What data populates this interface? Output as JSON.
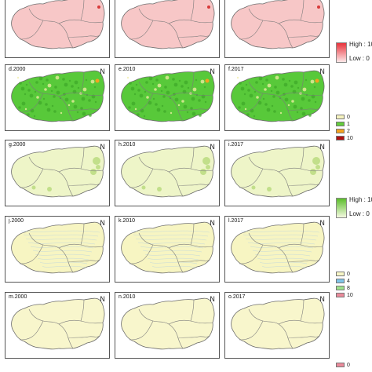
{
  "colors": {
    "row_a": "#f7c7c7",
    "row_b": "#58c93a",
    "row_c": "#eef5c8",
    "row_d": "#f7f5c2",
    "row_e": "#f8f6cc",
    "red_hot": "#d83a3a",
    "grad_red_high": "#e8333c",
    "grad_red_low": "#fde8e8",
    "grad_green_high": "#5bbd2a",
    "grad_green_low": "#f4f9e0",
    "cat1_0": "#f6f3bf",
    "cat1_1": "#63cc3c",
    "cat1_2": "#f4a21f",
    "cat1_10": "#b01010",
    "cat2_0": "#f8f6c6",
    "cat2_4": "#7fc4e8",
    "cat2_8": "#9de08c",
    "cat2_10": "#e98a9a"
  },
  "panels": [
    {
      "label": "",
      "row": 0,
      "col": 0
    },
    {
      "label": "",
      "row": 0,
      "col": 1
    },
    {
      "label": "",
      "row": 0,
      "col": 2
    },
    {
      "label": "d.2000",
      "row": 1,
      "col": 0
    },
    {
      "label": "e.2010",
      "row": 1,
      "col": 1
    },
    {
      "label": "f.2017",
      "row": 1,
      "col": 2
    },
    {
      "label": "g.2000",
      "row": 2,
      "col": 0
    },
    {
      "label": "h.2010",
      "row": 2,
      "col": 1
    },
    {
      "label": "i.2017",
      "row": 2,
      "col": 2
    },
    {
      "label": "j.2000",
      "row": 3,
      "col": 0
    },
    {
      "label": "k.2010",
      "row": 3,
      "col": 1
    },
    {
      "label": "l.2017",
      "row": 3,
      "col": 2
    },
    {
      "label": "m.2000",
      "row": 4,
      "col": 0
    },
    {
      "label": "n.2010",
      "row": 4,
      "col": 1
    },
    {
      "label": "o.2017",
      "row": 4,
      "col": 2
    }
  ],
  "north_symbol": "N",
  "legend_red": {
    "high": "High : 10",
    "low": "Low : 0"
  },
  "legend_cat1": {
    "items": [
      "0",
      "1",
      "2",
      "10"
    ]
  },
  "legend_green": {
    "high": "High : 10",
    "low": "Low : 0"
  },
  "legend_cat2": {
    "items": [
      "0",
      "4",
      "8",
      "10"
    ]
  },
  "legend_bottom": {
    "item": "0"
  }
}
